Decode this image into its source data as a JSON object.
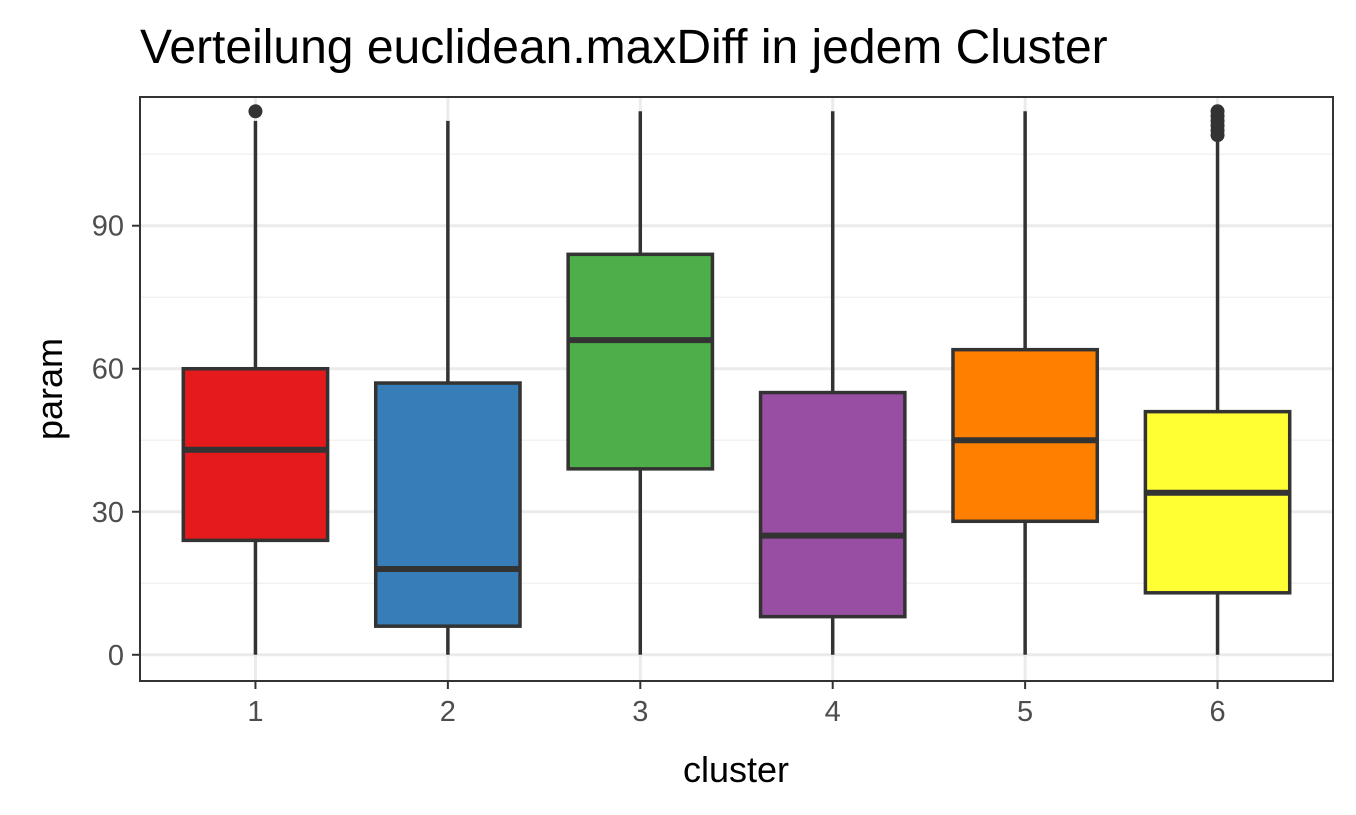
{
  "chart_data": {
    "type": "boxplot",
    "title": "Verteilung euclidean.maxDiff in jedem Cluster",
    "xlabel": "cluster",
    "ylabel": "param",
    "categories": [
      "1",
      "2",
      "3",
      "4",
      "5",
      "6"
    ],
    "yticks": [
      0,
      30,
      60,
      90
    ],
    "ylim": [
      -5.5,
      117
    ],
    "grid": true,
    "legend": "none",
    "boxes": [
      {
        "cluster": "1",
        "min": 0,
        "q1": 24,
        "median": 43,
        "q3": 60,
        "max": 112,
        "outliers": [
          114
        ],
        "color": "#E41A1C"
      },
      {
        "cluster": "2",
        "min": 0,
        "q1": 6,
        "median": 18,
        "q3": 57,
        "max": 112,
        "outliers": [],
        "color": "#377EB8"
      },
      {
        "cluster": "3",
        "min": 0,
        "q1": 39,
        "median": 66,
        "q3": 84,
        "max": 114,
        "outliers": [],
        "color": "#4DAF4A"
      },
      {
        "cluster": "4",
        "min": 0,
        "q1": 8,
        "median": 25,
        "q3": 55,
        "max": 114,
        "outliers": [],
        "color": "#984EA3"
      },
      {
        "cluster": "5",
        "min": 0,
        "q1": 28,
        "median": 45,
        "q3": 64,
        "max": 114,
        "outliers": [],
        "color": "#FF7F00"
      },
      {
        "cluster": "6",
        "min": 0,
        "q1": 13,
        "median": 34,
        "q3": 51,
        "max": 108,
        "outliers": [
          109,
          110,
          111,
          112,
          113,
          114
        ],
        "color": "#FFFF33"
      }
    ]
  }
}
